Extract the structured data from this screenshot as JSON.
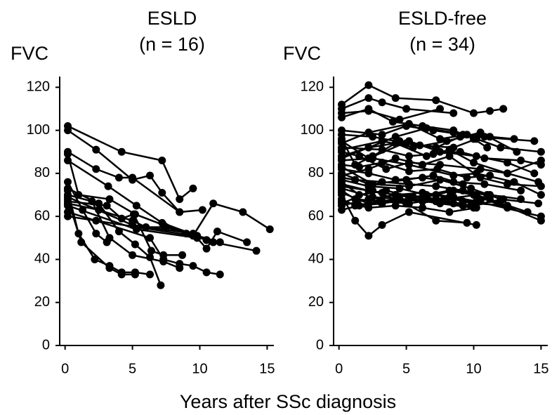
{
  "xlabel": "Years after SSc diagnosis",
  "chart_data": [
    {
      "type": "line",
      "title": "ESLD",
      "subtitle": "(n = 16)",
      "ylabel": "FVC",
      "color": "#000000",
      "xlim": [
        -0.4,
        15.5
      ],
      "xticks": [
        0,
        5,
        10,
        15
      ],
      "ylim": [
        0,
        125
      ],
      "yticks": [
        0,
        20,
        40,
        60,
        80,
        100,
        120
      ],
      "series": [
        {
          "x": [
            0.2,
            4.2,
            7.2,
            8.5,
            9.5
          ],
          "values": [
            102,
            90,
            86,
            68,
            73
          ]
        },
        {
          "x": [
            0.2,
            2.3,
            5,
            6.3,
            7.2,
            8.5,
            10.2
          ],
          "values": [
            100,
            91,
            77,
            79,
            71,
            62,
            63
          ]
        },
        {
          "x": [
            0.2,
            2.3,
            4,
            5,
            8.5
          ],
          "values": [
            90,
            82,
            78,
            78,
            62
          ]
        },
        {
          "x": [
            0.2,
            1,
            3.3,
            5.2,
            7.3,
            10.5
          ],
          "values": [
            89,
            70,
            68,
            61,
            56,
            49
          ]
        },
        {
          "x": [
            0.2,
            3.2,
            5.3,
            7.2,
            9.8,
            11.5
          ],
          "values": [
            86,
            74,
            65,
            57,
            51,
            48
          ]
        },
        {
          "x": [
            0.2,
            1.3,
            2.3,
            3.1
          ],
          "values": [
            76,
            63,
            52,
            48
          ]
        },
        {
          "x": [
            0.2,
            2.5,
            4,
            5.2,
            6.3,
            7.1
          ],
          "values": [
            73,
            66,
            53,
            47,
            41,
            28
          ]
        },
        {
          "x": [
            0.2,
            1,
            2.2,
            3.3,
            4.2,
            5.2,
            6.3
          ],
          "values": [
            72,
            52,
            40,
            37,
            34,
            34,
            33
          ]
        },
        {
          "x": [
            0.2,
            2,
            3.3,
            5,
            7.3,
            8.5
          ],
          "values": [
            70,
            67,
            50,
            42,
            39,
            36
          ]
        },
        {
          "x": [
            0.2,
            1.2,
            3.3,
            4.2,
            5.2
          ],
          "values": [
            68,
            48,
            36,
            33,
            33
          ]
        },
        {
          "x": [
            0.2,
            3.1,
            4.2,
            5.1,
            6.4,
            7.3,
            8.7
          ],
          "values": [
            67,
            65,
            59,
            61,
            44,
            42,
            42
          ]
        },
        {
          "x": [
            0.2,
            2.5,
            5,
            6,
            7.5,
            9,
            10.5
          ],
          "values": [
            66,
            63,
            58,
            55,
            55,
            52,
            49
          ]
        },
        {
          "x": [
            0.2,
            5.3,
            9.8,
            10.5,
            11.3,
            13.5
          ],
          "values": [
            65,
            54,
            50,
            45,
            53,
            48
          ]
        },
        {
          "x": [
            0.2,
            2.3,
            6.3,
            7.3,
            8.5,
            9.5,
            10.5,
            11.5
          ],
          "values": [
            62,
            58,
            50,
            40,
            38,
            37,
            34,
            33
          ]
        },
        {
          "x": [
            0.2,
            9.5,
            11,
            13.2,
            15.2
          ],
          "values": [
            60,
            51,
            66,
            62,
            54
          ]
        },
        {
          "x": [
            0.2,
            5,
            9.5,
            11,
            14.2
          ],
          "values": [
            69,
            56,
            52,
            48,
            44
          ]
        }
      ]
    },
    {
      "type": "line",
      "title": "ESLD-free",
      "subtitle": "(n = 34)",
      "ylabel": "FVC",
      "color": "#000000",
      "xlim": [
        -0.4,
        15.5
      ],
      "xticks": [
        0,
        5,
        10,
        15
      ],
      "ylim": [
        0,
        125
      ],
      "yticks": [
        0,
        20,
        40,
        60,
        80,
        100,
        120
      ],
      "series": [
        {
          "x": [
            0.2,
            2.2,
            4.2,
            7.2,
            10,
            11.2,
            12.2
          ],
          "values": [
            112,
            121,
            115,
            114,
            108,
            109,
            110
          ]
        },
        {
          "x": [
            0.2,
            2.2,
            3.2,
            5,
            8.5
          ],
          "values": [
            110,
            115,
            113,
            110,
            108
          ]
        },
        {
          "x": [
            0.2,
            2.2,
            4.5,
            7.5
          ],
          "values": [
            108,
            109,
            105,
            110
          ]
        },
        {
          "x": [
            0.2,
            2.2,
            4,
            6.2,
            8.5,
            10
          ],
          "values": [
            106,
            110,
            104,
            102,
            100,
            96
          ]
        },
        {
          "x": [
            0.2,
            3.2,
            5,
            7,
            9.2,
            11.2,
            13
          ],
          "values": [
            100,
            98,
            102,
            100,
            98,
            97,
            96
          ]
        },
        {
          "x": [
            0.2,
            2.5,
            5,
            7.2,
            9,
            10.2,
            14.5
          ],
          "values": [
            98,
            97,
            94,
            92,
            97,
            97,
            95
          ]
        },
        {
          "x": [
            0.2,
            1.2,
            2.5,
            4.5,
            6,
            8.5,
            10.2,
            12,
            15
          ],
          "values": [
            96,
            84,
            88,
            95,
            93,
            92,
            96,
            92,
            90
          ]
        },
        {
          "x": [
            0.2,
            2.2,
            5.2,
            7.5,
            9.5,
            11
          ],
          "values": [
            94,
            99,
            103,
            96,
            98,
            92
          ]
        },
        {
          "x": [
            0.2,
            3.2,
            5.2,
            7,
            9,
            10.8,
            13.5,
            15
          ],
          "values": [
            92,
            91,
            88,
            89,
            90,
            87,
            86,
            84
          ]
        },
        {
          "x": [
            0.2,
            1.5,
            3.5,
            5.2,
            7.5,
            10.5,
            12.5,
            15
          ],
          "values": [
            90,
            88,
            82,
            85,
            84,
            82,
            80,
            86
          ]
        },
        {
          "x": [
            0.2,
            2.2,
            4.2,
            6.5,
            8.2,
            10,
            12.5,
            14.8
          ],
          "values": [
            88,
            92,
            94,
            88,
            91,
            85,
            80,
            76
          ]
        },
        {
          "x": [
            0.2,
            2.5,
            5.2,
            8.5,
            10.2,
            13,
            15
          ],
          "values": [
            86,
            87,
            84,
            79,
            80,
            76,
            70
          ]
        },
        {
          "x": [
            0.2,
            1.5,
            3.2,
            5.2,
            7.3,
            9.5,
            11.2
          ],
          "values": [
            84,
            83,
            85,
            81,
            82,
            78,
            79
          ]
        },
        {
          "x": [
            0.2,
            2.2,
            4.2,
            6.2,
            8.5,
            10.8,
            13.5
          ],
          "values": [
            82,
            80,
            77,
            78,
            76,
            75,
            72
          ]
        },
        {
          "x": [
            0.2,
            2.2,
            5.2,
            7.5,
            9.8,
            12,
            14.8
          ],
          "values": [
            80,
            75,
            74,
            77,
            73,
            68,
            66
          ]
        },
        {
          "x": [
            0.2,
            1.2,
            3.2,
            5.2,
            7.2,
            9.2,
            11.2,
            13.5
          ],
          "values": [
            78,
            77,
            76,
            75,
            74,
            72,
            70,
            68
          ]
        },
        {
          "x": [
            0.2,
            2.2,
            4.5,
            6.5,
            8.2,
            10,
            12.5
          ],
          "values": [
            77,
            74,
            73,
            70,
            72,
            70,
            64
          ]
        },
        {
          "x": [
            0.2,
            1.5,
            3.5,
            5.5,
            7.8,
            10.2,
            14
          ],
          "values": [
            76,
            70,
            72,
            69,
            68,
            70,
            62
          ]
        },
        {
          "x": [
            0.2,
            2.2,
            4.2,
            6.2,
            8.5,
            10.2,
            15
          ],
          "values": [
            75,
            72,
            70,
            71,
            69,
            67,
            60
          ]
        },
        {
          "x": [
            0.2,
            3.2,
            5.2,
            7.2,
            9.2,
            11.2,
            15
          ],
          "values": [
            74,
            71,
            69,
            70,
            67,
            68,
            58
          ]
        },
        {
          "x": [
            0.2,
            2.5,
            4.5,
            6.5,
            8.5,
            10.5
          ],
          "values": [
            73,
            69,
            68,
            68,
            66,
            67
          ]
        },
        {
          "x": [
            0.2,
            1.2,
            3.2,
            5.2,
            7.2,
            9.2
          ],
          "values": [
            72,
            68,
            67,
            68,
            67,
            65
          ]
        },
        {
          "x": [
            0.2,
            2.2,
            4.2,
            6.2,
            8.2,
            10.2,
            12.5
          ],
          "values": [
            71,
            66,
            68,
            67,
            69,
            66,
            65
          ]
        },
        {
          "x": [
            0.2,
            1.2,
            2.2,
            3.2,
            5.2,
            10.2
          ],
          "values": [
            70,
            58,
            51,
            56,
            62,
            56
          ]
        },
        {
          "x": [
            0.2,
            1.2,
            3,
            5.2,
            7.2,
            9.8,
            12.2
          ],
          "values": [
            68,
            65,
            67,
            66,
            68,
            65,
            68
          ]
        },
        {
          "x": [
            0.2,
            2.2,
            4.2,
            6.2,
            8.2,
            10.2
          ],
          "values": [
            67,
            64,
            65,
            64,
            62,
            64
          ]
        },
        {
          "x": [
            0.2,
            2.5,
            5,
            7.2,
            9.5
          ],
          "values": [
            66,
            72,
            66,
            58,
            57
          ]
        },
        {
          "x": [
            0.2,
            2.2,
            4.2,
            6.5,
            8.5,
            11
          ],
          "values": [
            65,
            68,
            70,
            69,
            72,
            70
          ]
        },
        {
          "x": [
            0.2,
            1.5,
            3.2,
            5.2,
            7.5,
            10
          ],
          "values": [
            63,
            65,
            66,
            68,
            66,
            64
          ]
        },
        {
          "x": [
            0.2,
            2.2,
            5.2,
            7.5,
            10.2,
            12.5,
            14.5
          ],
          "values": [
            95,
            87,
            95,
            90,
            88,
            85,
            80
          ]
        },
        {
          "x": [
            0.2,
            3.2,
            5.5,
            8,
            10.5,
            13.2
          ],
          "values": [
            91,
            95,
            92,
            95,
            99,
            90
          ]
        },
        {
          "x": [
            0.2,
            2.2,
            4.2,
            6.5,
            8.5,
            10.8
          ],
          "values": [
            87,
            92,
            97,
            101,
            99,
            97
          ]
        },
        {
          "x": [
            0.2,
            2.5,
            5,
            7,
            9.2
          ],
          "values": [
            83,
            75,
            77,
            79,
            75
          ]
        },
        {
          "x": [
            0.2,
            2.2,
            4.2,
            6.2,
            8.2,
            10.5,
            12.5,
            15
          ],
          "values": [
            79,
            82,
            87,
            84,
            88,
            78,
            75,
            74
          ]
        }
      ]
    }
  ]
}
